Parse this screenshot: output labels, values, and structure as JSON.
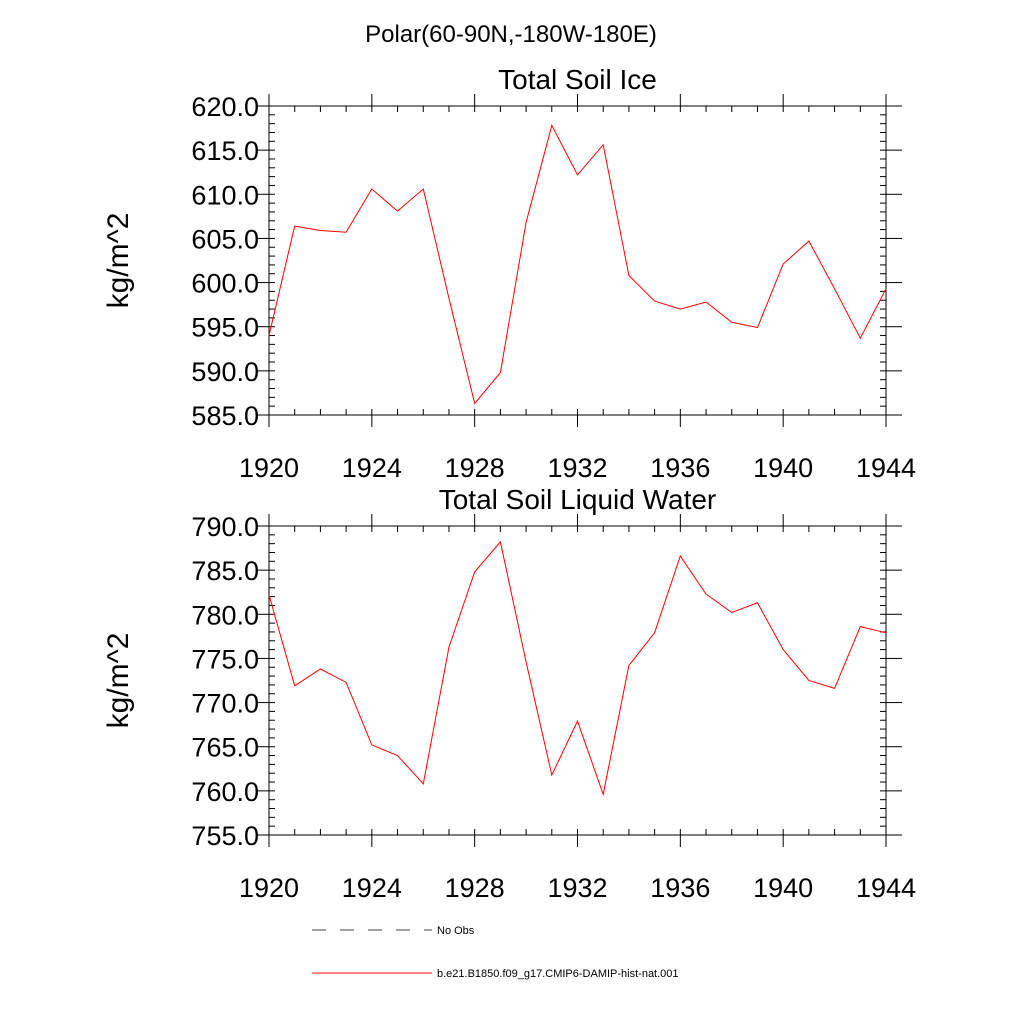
{
  "figure": {
    "suptitle": "Polar(60-90N,-180W-180E)"
  },
  "chart_data": [
    {
      "type": "line",
      "title": "Total Soil Ice",
      "ylabel": "kg/m^2",
      "xlabel": "",
      "xlim": [
        1920,
        1944
      ],
      "ylim": [
        585,
        620
      ],
      "xticks": [
        1920,
        1924,
        1928,
        1932,
        1936,
        1940,
        1944
      ],
      "xtick_labels": [
        "1920",
        "1924",
        "1928",
        "1932",
        "1936",
        "1940",
        "1944"
      ],
      "yticks": [
        585,
        590,
        595,
        600,
        605,
        610,
        615,
        620
      ],
      "ytick_labels": [
        "585.0",
        "590.0",
        "595.0",
        "600.0",
        "605.0",
        "610.0",
        "615.0",
        "620.0"
      ],
      "x": [
        1920,
        1921,
        1922,
        1923,
        1924,
        1925,
        1926,
        1927,
        1928,
        1929,
        1930,
        1931,
        1932,
        1933,
        1934,
        1935,
        1936,
        1937,
        1938,
        1939,
        1940,
        1941,
        1942,
        1943,
        1944
      ],
      "series": [
        {
          "name": "b.e21.B1850.f09_g17.CMIP6-DAMIP-hist-nat.001",
          "color": "#ff0000",
          "values": [
            594.0,
            606.4,
            605.9,
            605.7,
            610.6,
            608.1,
            610.6,
            598.2,
            586.3,
            589.8,
            606.8,
            617.8,
            612.2,
            615.6,
            600.8,
            597.9,
            597.0,
            597.8,
            595.5,
            594.9,
            602.1,
            604.7,
            599.3,
            593.7,
            599.3
          ]
        }
      ]
    },
    {
      "type": "line",
      "title": "Total Soil Liquid Water",
      "ylabel": "kg/m^2",
      "xlabel": "",
      "xlim": [
        1920,
        1944
      ],
      "ylim": [
        755,
        790
      ],
      "xticks": [
        1920,
        1924,
        1928,
        1932,
        1936,
        1940,
        1944
      ],
      "xtick_labels": [
        "1920",
        "1924",
        "1928",
        "1932",
        "1936",
        "1940",
        "1944"
      ],
      "yticks": [
        755,
        760,
        765,
        770,
        775,
        780,
        785,
        790
      ],
      "ytick_labels": [
        "755.0",
        "760.0",
        "765.0",
        "770.0",
        "775.0",
        "780.0",
        "785.0",
        "790.0"
      ],
      "x": [
        1920,
        1921,
        1922,
        1923,
        1924,
        1925,
        1926,
        1927,
        1928,
        1929,
        1930,
        1931,
        1932,
        1933,
        1934,
        1935,
        1936,
        1937,
        1938,
        1939,
        1940,
        1941,
        1942,
        1943,
        1944
      ],
      "series": [
        {
          "name": "b.e21.B1850.f09_g17.CMIP6-DAMIP-hist-nat.001",
          "color": "#ff0000",
          "values": [
            782.2,
            771.9,
            773.8,
            772.3,
            765.2,
            764.0,
            760.8,
            776.3,
            784.8,
            788.2,
            774.6,
            761.8,
            767.9,
            759.6,
            774.2,
            777.9,
            786.6,
            782.3,
            780.2,
            781.3,
            776.0,
            772.5,
            771.6,
            778.6,
            777.9
          ]
        }
      ]
    }
  ],
  "legend": {
    "placement": "bottom",
    "items": [
      {
        "label": "No Obs",
        "style": "dashed",
        "color": "#000000"
      },
      {
        "label": "b.e21.B1850.f09_g17.CMIP6-DAMIP-hist-nat.001",
        "style": "solid",
        "color": "#ff0000"
      }
    ]
  }
}
